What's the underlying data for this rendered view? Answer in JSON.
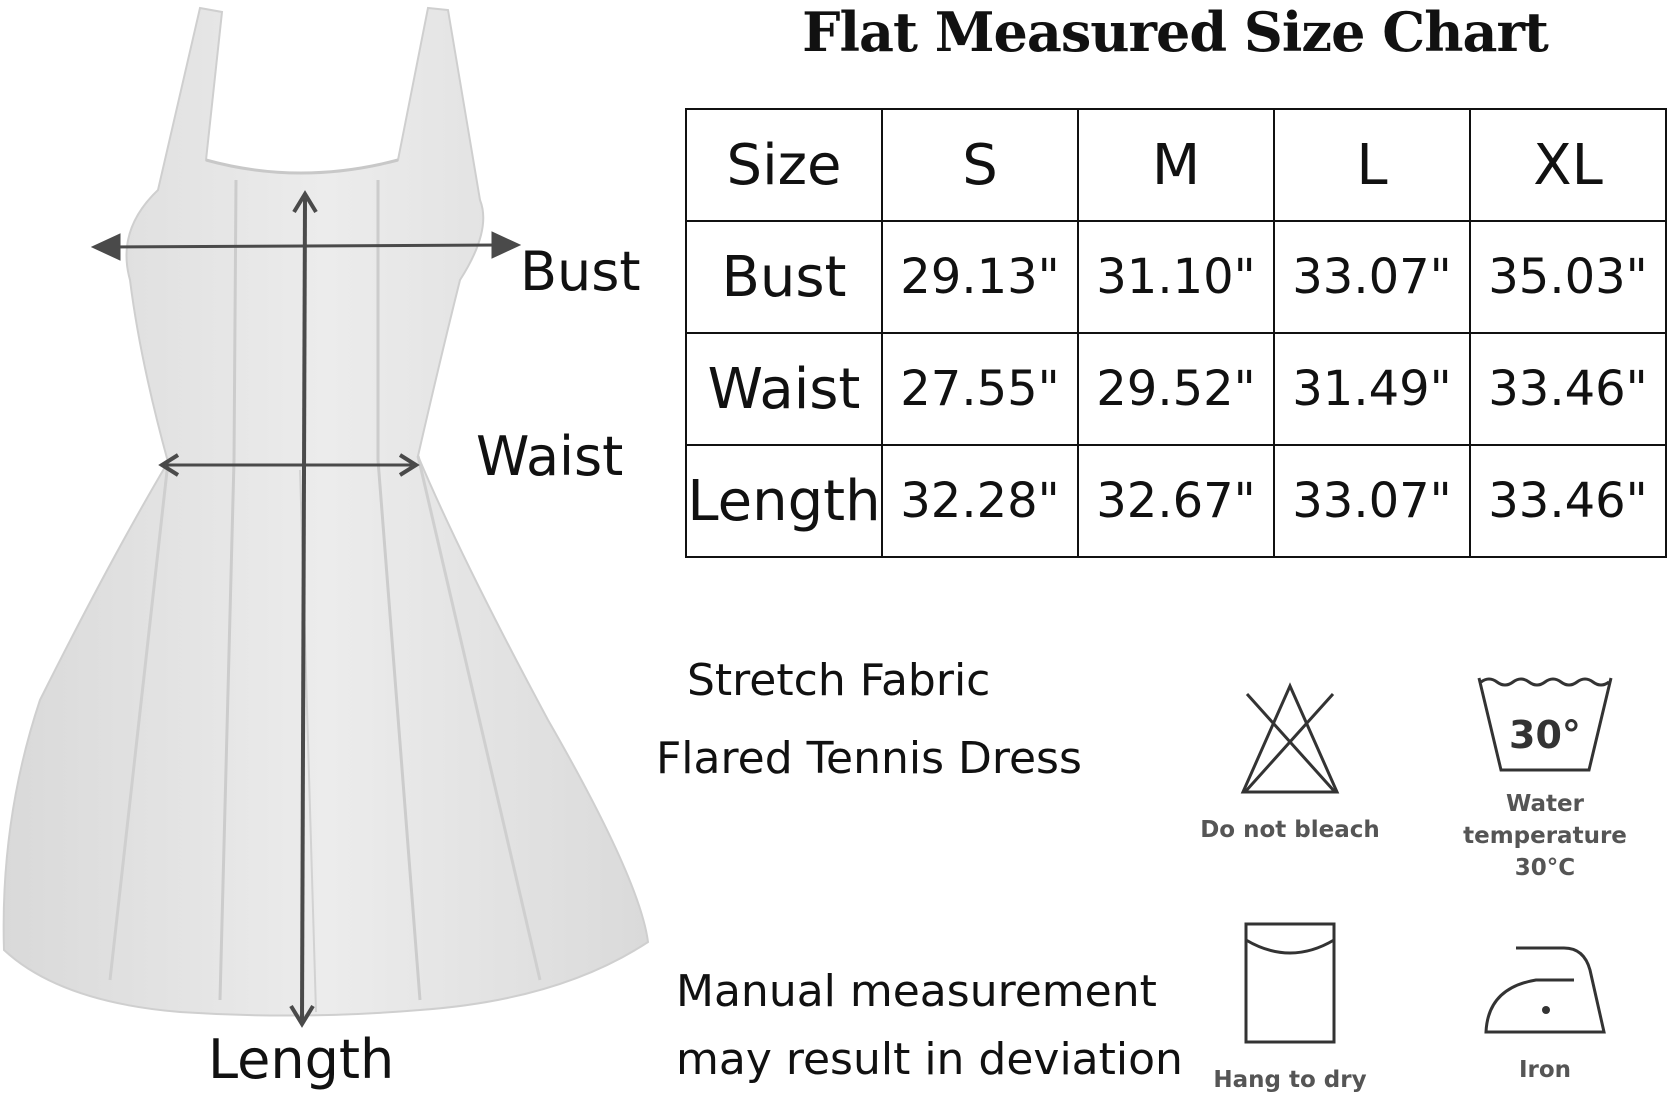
{
  "figure": {
    "labels": {
      "bust": "Bust",
      "waist": "Waist",
      "length": "Length"
    }
  },
  "chart_title": "Flat Measured Size Chart",
  "size_table": {
    "header": [
      "Size",
      "S",
      "M",
      "L",
      "XL"
    ],
    "rows": [
      {
        "label": "Bust",
        "values": [
          "29.13\"",
          "31.10\"",
          "33.07\"",
          "35.03\""
        ]
      },
      {
        "label": "Waist",
        "values": [
          "27.55\"",
          "29.52\"",
          "31.49\"",
          "33.46\""
        ]
      },
      {
        "label": "Length",
        "values": [
          "32.28\"",
          "32.67\"",
          "33.07\"",
          "33.46\""
        ]
      }
    ]
  },
  "description": {
    "line1": "Stretch Fabric",
    "line2": "Flared Tennis Dress"
  },
  "note": {
    "line1": "Manual measurement",
    "line2": "may result in deviation"
  },
  "care": {
    "bleach": {
      "icon": "do-not-bleach-icon",
      "label": "Do not bleach"
    },
    "wash": {
      "icon": "wash-30-icon",
      "temp": "30°",
      "label_line1": "Water",
      "label_line2": "temperature",
      "label_line3": "30°C"
    },
    "dry": {
      "icon": "hang-to-dry-icon",
      "label": "Hang to dry"
    },
    "iron": {
      "icon": "iron-icon",
      "label": "Iron"
    }
  },
  "colors": {
    "text": "#111111",
    "dress": "#e4e4e4",
    "arrow": "#4a4a4a",
    "care_label": "#555555"
  }
}
